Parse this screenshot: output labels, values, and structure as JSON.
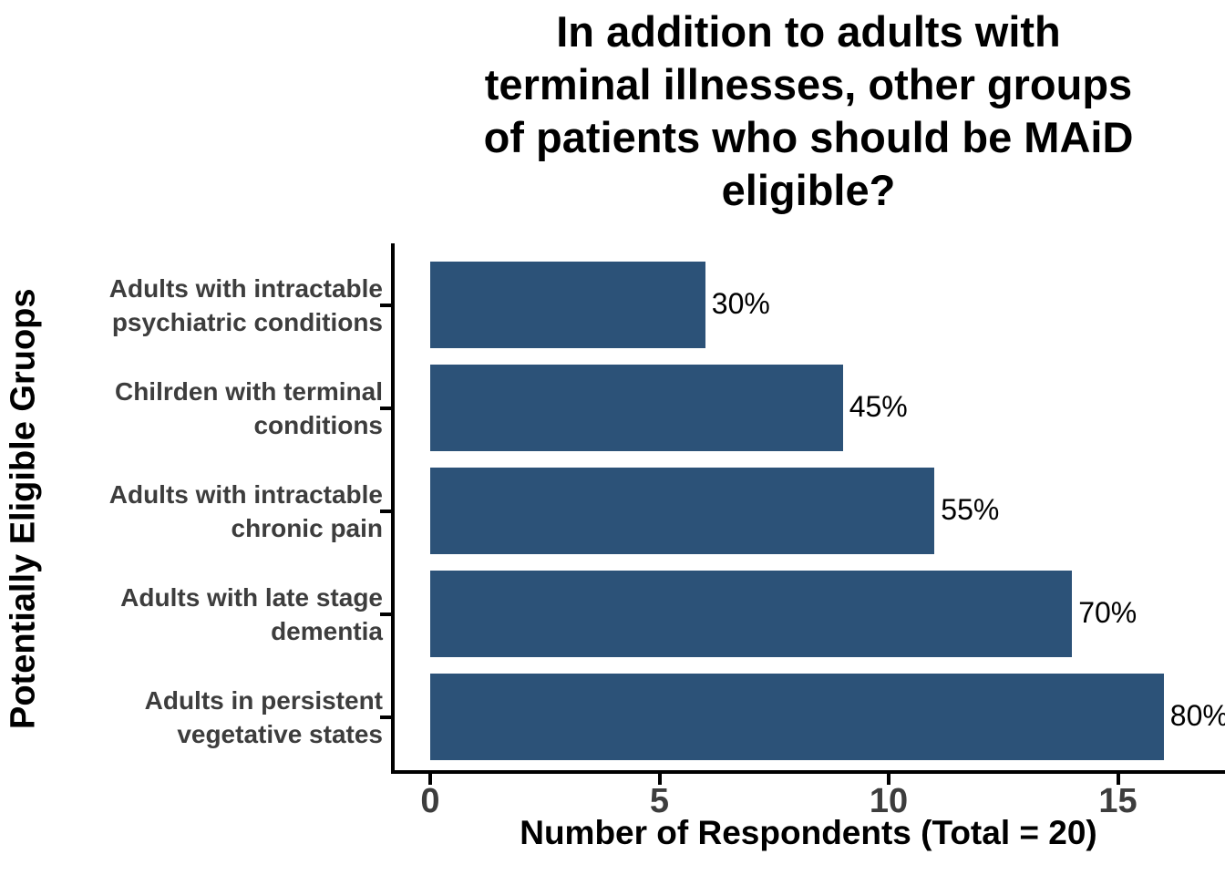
{
  "chart_data": {
    "type": "bar",
    "orientation": "horizontal",
    "title": "In addition to adults with terminal illnesses, other groups of patients who should be MAiD eligible?",
    "title_lines": [
      "In addition to adults with",
      "terminal illnesses, other groups",
      "of patients who should be MAiD",
      "eligible?"
    ],
    "ylabel": "Potentially Eligible Gruops",
    "xlabel": "Number of Respondents (Total = 20)",
    "categories": [
      "Adults with intractable psychiatric conditions",
      "Chilrden with terminal conditions",
      "Adults with intractable chronic pain",
      "Adults with late stage dementia",
      "Adults in persistent vegetative states"
    ],
    "category_lines": [
      [
        "Adults with intractable",
        "psychiatric conditions"
      ],
      [
        "Chilrden with terminal",
        "conditions"
      ],
      [
        "Adults with intractable",
        "chronic pain"
      ],
      [
        "Adults with late stage",
        "dementia"
      ],
      [
        "Adults in persistent",
        "vegetative states"
      ]
    ],
    "values": [
      6,
      9,
      11,
      14,
      16
    ],
    "bar_labels": [
      "30%",
      "45%",
      "55%",
      "70%",
      "80%"
    ],
    "x_ticks": [
      "0",
      "5",
      "10",
      "15"
    ],
    "x_tick_values": [
      0,
      5,
      10,
      15
    ],
    "xlim": [
      0,
      17.3
    ],
    "bar_color": "#2C5278",
    "axis_color": "#000000",
    "axis_text_color": "#3D3D3D",
    "title_color": "#000000",
    "value_label_color": "#000000",
    "grid": false,
    "legend_position": "none"
  }
}
